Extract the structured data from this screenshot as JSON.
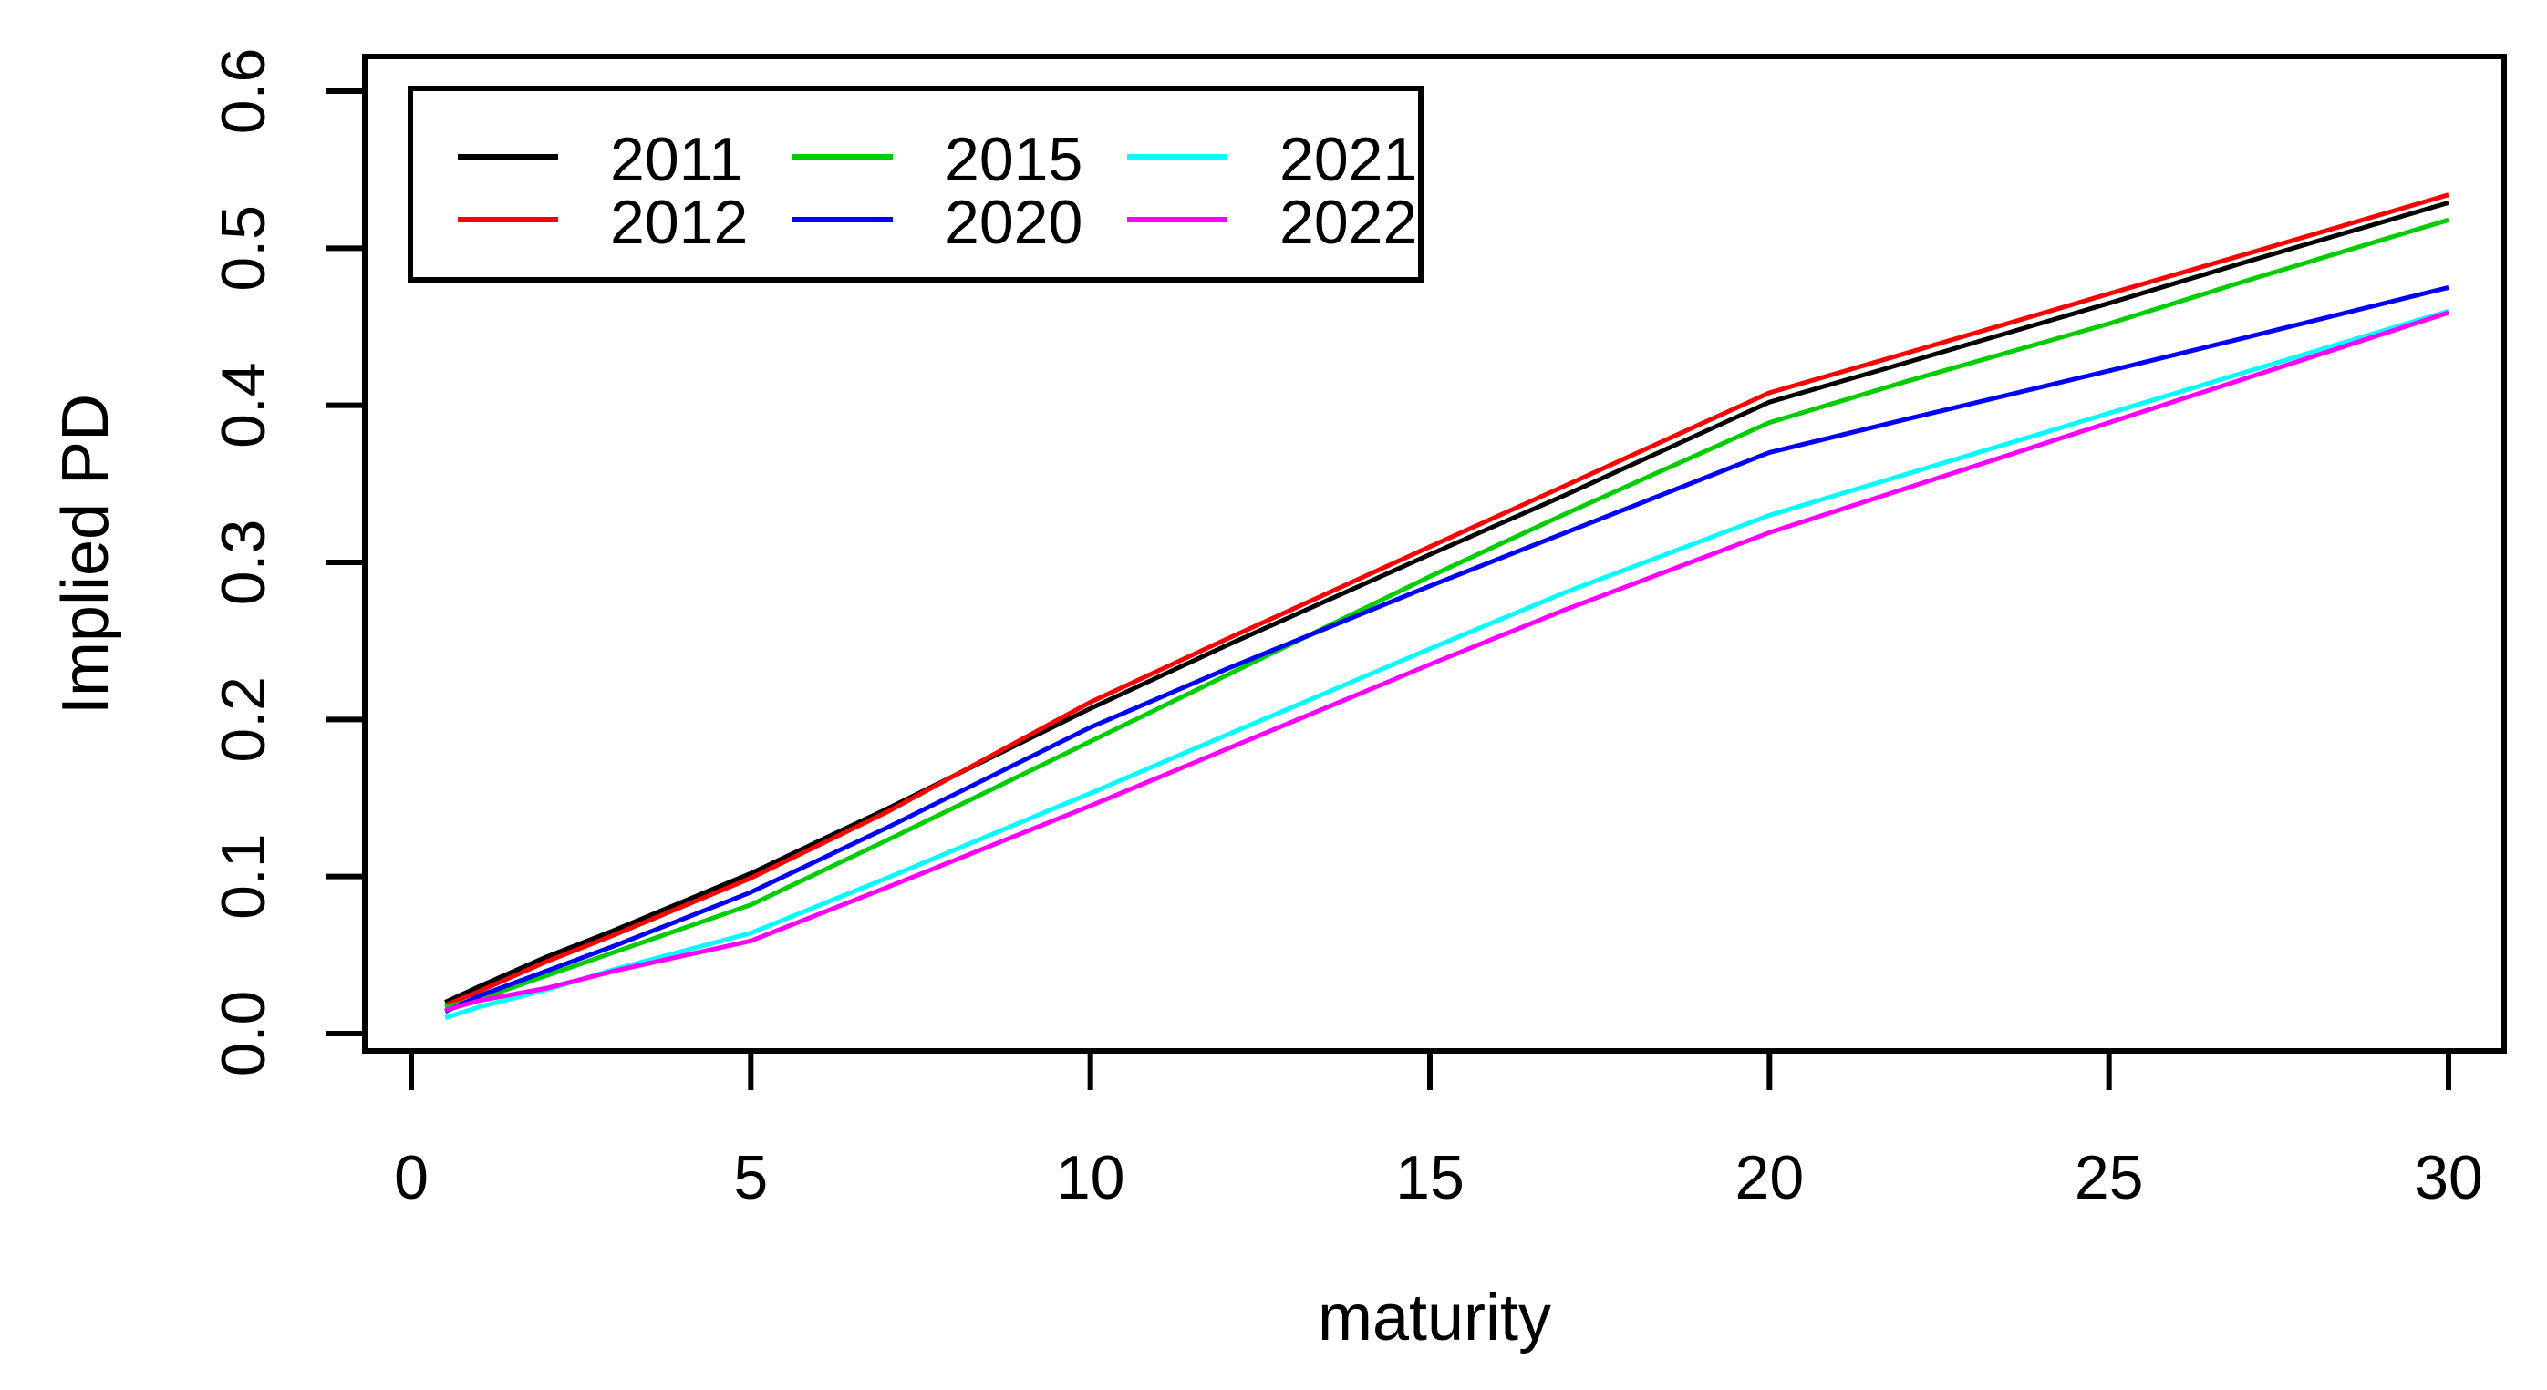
{
  "chart_data": {
    "type": "line",
    "title": "",
    "xlabel": "maturity",
    "ylabel": "Implied PD",
    "xlim": [
      0,
      30
    ],
    "ylim": [
      0.0,
      0.6
    ],
    "grid": false,
    "x_ticks": [
      0,
      5,
      10,
      15,
      20,
      25,
      30
    ],
    "y_ticks": [
      "0.0",
      "0.1",
      "0.2",
      "0.3",
      "0.4",
      "0.5",
      "0.6"
    ],
    "legend": {
      "position": "top-left",
      "columns": 3,
      "rows": 2,
      "order": "column-major"
    },
    "x": [
      0.5,
      1,
      2,
      3,
      5,
      7,
      10,
      12,
      15,
      17,
      20,
      22,
      25,
      27,
      30
    ],
    "series": [
      {
        "name": "2011",
        "color": "#000000",
        "values": [
          0.02,
          0.03,
          0.049,
          0.066,
          0.102,
          0.143,
          0.207,
          0.247,
          0.305,
          0.343,
          0.402,
          0.427,
          0.465,
          0.491,
          0.529
        ]
      },
      {
        "name": "2012",
        "color": "#FF0000",
        "values": [
          0.018,
          0.027,
          0.046,
          0.063,
          0.099,
          0.141,
          0.211,
          0.251,
          0.31,
          0.349,
          0.408,
          0.433,
          0.471,
          0.496,
          0.534
        ]
      },
      {
        "name": "2015",
        "color": "#00CD00",
        "values": [
          0.017,
          0.022,
          0.037,
          0.052,
          0.082,
          0.123,
          0.186,
          0.228,
          0.291,
          0.331,
          0.389,
          0.415,
          0.452,
          0.479,
          0.518
        ]
      },
      {
        "name": "2020",
        "color": "#0000FF",
        "values": [
          0.014,
          0.024,
          0.04,
          0.056,
          0.09,
          0.131,
          0.195,
          0.232,
          0.285,
          0.319,
          0.37,
          0.391,
          0.422,
          0.443,
          0.475
        ]
      },
      {
        "name": "2021",
        "color": "#00FFFF",
        "values": [
          0.01,
          0.017,
          0.028,
          0.041,
          0.064,
          0.099,
          0.153,
          0.19,
          0.245,
          0.281,
          0.33,
          0.356,
          0.395,
          0.421,
          0.46
        ]
      },
      {
        "name": "2022",
        "color": "#FF00FF",
        "values": [
          0.015,
          0.021,
          0.029,
          0.04,
          0.059,
          0.093,
          0.145,
          0.181,
          0.235,
          0.27,
          0.319,
          0.347,
          0.389,
          0.417,
          0.459
        ]
      }
    ]
  }
}
